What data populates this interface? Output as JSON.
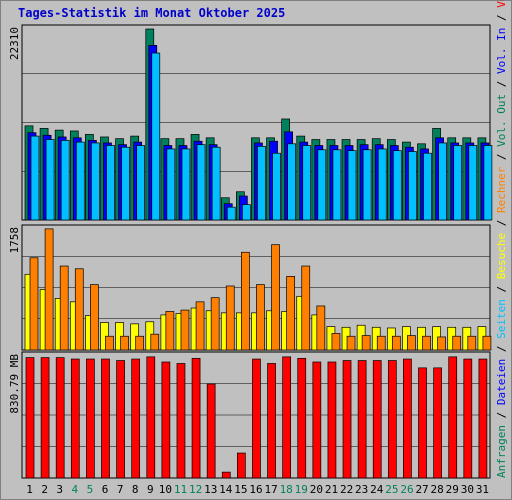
{
  "title": "Tages-Statistik im Monat Oktober 2025",
  "colors": {
    "anfragen": "#00805c",
    "dateien": "#0000ff",
    "seiten": "#00c0ff",
    "besuche": "#ffff00",
    "rechner": "#ff8000",
    "vol_in": "#0000ff",
    "vol_out": "#00805c",
    "volumen": "#ff0000",
    "weekend_label": "#00805c",
    "panel_bg": "#c0c0c0"
  },
  "chart_data": [
    {
      "type": "bar",
      "panel": "top",
      "ymax_label": "22310",
      "ymax": 22310,
      "ylim": [
        0,
        22310
      ],
      "series": [
        {
          "name": "Anfragen",
          "values": [
            11000,
            10700,
            10500,
            10400,
            10000,
            9700,
            9500,
            9800,
            22310,
            9500,
            9500,
            10000,
            9600,
            2600,
            3300,
            9600,
            9600,
            11800,
            9800,
            9400,
            9400,
            9400,
            9400,
            9500,
            9400,
            9100,
            8900,
            10700,
            9600,
            9600,
            9600
          ]
        },
        {
          "name": "Dateien",
          "values": [
            10200,
            9900,
            9700,
            9600,
            9300,
            9000,
            8800,
            9100,
            20400,
            8700,
            8700,
            9200,
            8800,
            1900,
            2800,
            9000,
            9200,
            10300,
            9100,
            8700,
            8700,
            8700,
            8800,
            8800,
            8700,
            8500,
            8300,
            9600,
            9000,
            9000,
            9000
          ]
        },
        {
          "name": "Seiten",
          "values": [
            9800,
            9400,
            9300,
            9100,
            9000,
            8700,
            8500,
            8700,
            19500,
            8300,
            8300,
            8800,
            8500,
            1500,
            1800,
            8600,
            7800,
            8900,
            8700,
            8200,
            8200,
            8100,
            8200,
            8300,
            8100,
            8000,
            7800,
            9000,
            8700,
            8700,
            8700
          ]
        }
      ]
    },
    {
      "type": "bar",
      "panel": "middle",
      "ymax_label": "1758",
      "ymax": 1758,
      "ylim": [
        0,
        1758
      ],
      "series": [
        {
          "name": "Besuche",
          "values": [
            1100,
            880,
            750,
            700,
            500,
            400,
            400,
            380,
            410,
            510,
            530,
            610,
            570,
            540,
            540,
            540,
            570,
            560,
            780,
            510,
            340,
            330,
            360,
            330,
            320,
            340,
            330,
            340,
            330,
            330,
            340
          ]
        },
        {
          "name": "Rechner",
          "values": [
            1340,
            1760,
            1220,
            1180,
            950,
            200,
            200,
            200,
            230,
            560,
            580,
            700,
            760,
            930,
            1420,
            950,
            1530,
            1070,
            1220,
            640,
            240,
            200,
            210,
            200,
            200,
            210,
            200,
            190,
            200,
            200,
            200
          ]
        }
      ]
    },
    {
      "type": "bar",
      "panel": "bottom",
      "ymax_label": "830.79 MB",
      "ymax": 830.79,
      "ylim": [
        0,
        830.79
      ],
      "series": [
        {
          "name": "Volumen",
          "values": [
            820,
            820,
            820,
            810,
            810,
            810,
            800,
            810,
            825,
            790,
            780,
            815,
            640,
            40,
            170,
            810,
            780,
            825,
            815,
            790,
            790,
            800,
            800,
            800,
            800,
            810,
            750,
            750,
            825,
            810,
            810
          ]
        }
      ]
    }
  ],
  "x_labels": [
    "1",
    "2",
    "3",
    "4",
    "5",
    "6",
    "7",
    "8",
    "9",
    "10",
    "11",
    "12",
    "13",
    "14",
    "15",
    "16",
    "17",
    "18",
    "19",
    "20",
    "21",
    "22",
    "23",
    "24",
    "25",
    "26",
    "27",
    "28",
    "29",
    "30",
    "31"
  ],
  "weekend_days": [
    4,
    5,
    11,
    12,
    18,
    19,
    25,
    26
  ],
  "right_labels": {
    "top": [
      {
        "text": "Anfragen",
        "color": "#00805c"
      },
      {
        "text": " / ",
        "color": "#000000"
      },
      {
        "text": "Dateien",
        "color": "#0000ff"
      },
      {
        "text": " / ",
        "color": "#000000"
      },
      {
        "text": "Seiten",
        "color": "#00c0ff"
      },
      {
        "text": " / ",
        "color": "#000000"
      },
      {
        "text": "Besuche",
        "color": "#ffff00"
      },
      {
        "text": " / ",
        "color": "#000000"
      },
      {
        "text": "Rechner",
        "color": "#ff8000"
      },
      {
        "text": " / ",
        "color": "#000000"
      },
      {
        "text": "Vol. Out",
        "color": "#00805c"
      },
      {
        "text": " / ",
        "color": "#000000"
      },
      {
        "text": "Vol. In",
        "color": "#0000ff"
      },
      {
        "text": " / ",
        "color": "#000000"
      },
      {
        "text": "Volumen",
        "color": "#ff0000"
      }
    ]
  }
}
